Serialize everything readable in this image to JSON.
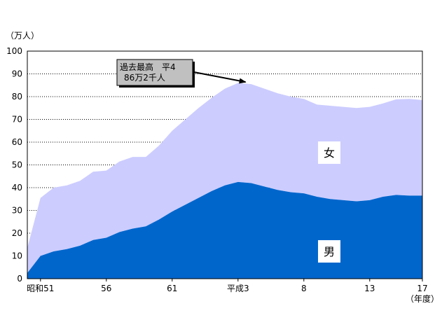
{
  "chart_data": {
    "type": "area",
    "stacked": true,
    "y_unit": "（万人）",
    "x_unit": "（年度）",
    "ylim": [
      0,
      100
    ],
    "y_ticks": [
      0,
      10,
      20,
      30,
      40,
      50,
      60,
      70,
      80,
      90,
      100
    ],
    "x": [
      "昭和50",
      "51",
      "52",
      "53",
      "54",
      "55",
      "56",
      "57",
      "58",
      "59",
      "60",
      "61",
      "62",
      "63",
      "平成1",
      "2",
      "3",
      "4",
      "5",
      "6",
      "7",
      "8",
      "9",
      "10",
      "11",
      "12",
      "13",
      "14",
      "15",
      "16",
      "17"
    ],
    "x_tick_labels": [
      {
        "index": 1,
        "label": "昭和51"
      },
      {
        "index": 6,
        "label": "56"
      },
      {
        "index": 11,
        "label": "61"
      },
      {
        "index": 16,
        "label": "平成3"
      },
      {
        "index": 21,
        "label": "8"
      },
      {
        "index": 26,
        "label": "13"
      },
      {
        "index": 30,
        "label": "17"
      }
    ],
    "series": [
      {
        "name": "男",
        "color": "#0066cc",
        "values": [
          2.5,
          10,
          12,
          13,
          14.5,
          17,
          18,
          20.5,
          22,
          23,
          26,
          29.5,
          32.5,
          35.5,
          38.5,
          41,
          42.5,
          42,
          40.5,
          39,
          38,
          37.5,
          36,
          35,
          34.5,
          34,
          34.5,
          36,
          36.8,
          36.5,
          36.5
        ]
      },
      {
        "name": "女",
        "color": "#ccccff",
        "values": [
          11,
          25.5,
          28,
          28,
          28.5,
          30,
          29.5,
          31,
          31.5,
          30.5,
          32.5,
          35.5,
          37.5,
          39.5,
          41,
          42.5,
          43.5,
          43.5,
          43,
          42.5,
          42,
          41.5,
          40.5,
          41,
          41,
          41,
          41,
          41,
          42,
          42.5,
          42
        ]
      }
    ],
    "grid": true,
    "annotation": {
      "text_line1": "過去最高　平4",
      "text_line2": "86万2千人",
      "target_index": 17
    }
  }
}
